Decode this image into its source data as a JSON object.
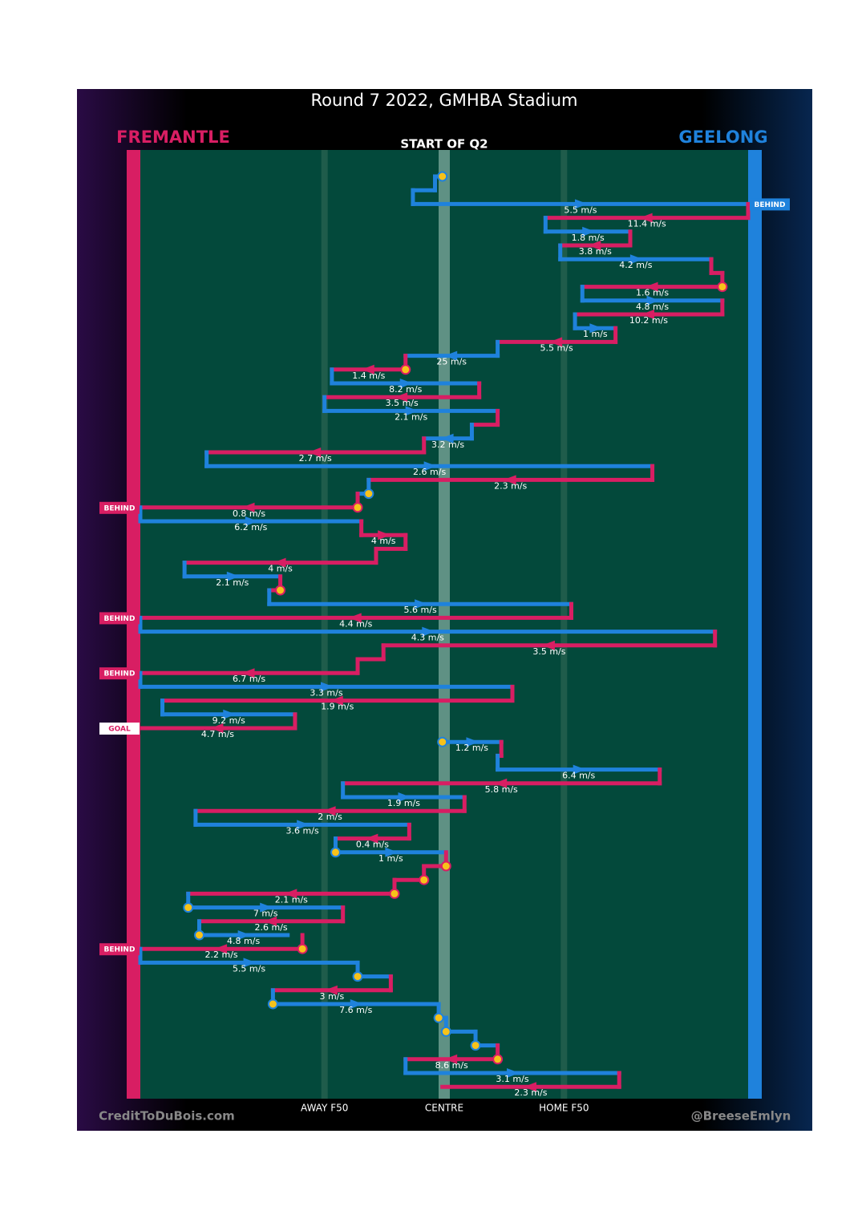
{
  "chart_data": {
    "type": "possession-chain",
    "title": "Round 7 2022, GMHBA Stadium",
    "subtitle": "START OF Q2",
    "credit_left": "CreditToDuBois.com",
    "credit_right": "@BreeseEmlyn",
    "teams": [
      {
        "name": "FREMANTLE",
        "color": "#d81e63"
      },
      {
        "name": "GEELONG",
        "color": "#1f82dc"
      }
    ],
    "xlim": [
      0,
      165
    ],
    "xticks": [
      {
        "value": 50,
        "label": "AWAY F50"
      },
      {
        "value": 82.5,
        "label": "CENTRE"
      },
      {
        "value": 115,
        "label": "HOME F50"
      }
    ],
    "moves": [
      {
        "team": 1,
        "from": 82,
        "to": 80,
        "contest": true
      },
      {
        "team": 1,
        "from": 80,
        "to": 74
      },
      {
        "team": 1,
        "from": 74,
        "to": 165,
        "label": "5.5 m/s",
        "result": "BEHIND"
      },
      {
        "team": 0,
        "from": 165,
        "to": 110,
        "label": "11.4 m/s"
      },
      {
        "team": 1,
        "from": 110,
        "to": 133,
        "label": "1.8 m/s"
      },
      {
        "team": 0,
        "from": 133,
        "to": 114,
        "label": "3.8 m/s"
      },
      {
        "team": 1,
        "from": 114,
        "to": 155,
        "label": "4.2 m/s"
      },
      {
        "team": 0,
        "from": 155,
        "to": 158
      },
      {
        "team": 0,
        "from": 158,
        "to": 120,
        "label": "1.6 m/s",
        "contest": true
      },
      {
        "team": 1,
        "from": 120,
        "to": 158,
        "label": "4.8 m/s"
      },
      {
        "team": 0,
        "from": 158,
        "to": 118,
        "label": "10.2 m/s"
      },
      {
        "team": 1,
        "from": 118,
        "to": 129,
        "label": "1 m/s"
      },
      {
        "team": 0,
        "from": 129,
        "to": 97,
        "label": "5.5 m/s"
      },
      {
        "team": 1,
        "from": 97,
        "to": 72,
        "label": "25 m/s"
      },
      {
        "team": 0,
        "from": 72,
        "to": 52,
        "label": "1.4 m/s",
        "contest": true
      },
      {
        "team": 1,
        "from": 52,
        "to": 92,
        "label": "8.2 m/s"
      },
      {
        "team": 0,
        "from": 92,
        "to": 50,
        "label": "3.5 m/s"
      },
      {
        "team": 1,
        "from": 50,
        "to": 97,
        "label": "2.1 m/s"
      },
      {
        "team": 0,
        "from": 97,
        "to": 90
      },
      {
        "team": 1,
        "from": 90,
        "to": 77,
        "label": "3.2 m/s"
      },
      {
        "team": 0,
        "from": 77,
        "to": 18,
        "label": "2.7 m/s"
      },
      {
        "team": 1,
        "from": 18,
        "to": 139,
        "label": "2.6 m/s"
      },
      {
        "team": 0,
        "from": 139,
        "to": 62,
        "label": "2.3 m/s"
      },
      {
        "team": 1,
        "from": 62,
        "to": 59,
        "contest": true
      },
      {
        "team": 0,
        "from": 59,
        "to": 0,
        "label": "0.8 m/s",
        "contest": true,
        "result": "BEHIND"
      },
      {
        "team": 1,
        "from": 0,
        "to": 60,
        "label": "6.2 m/s"
      },
      {
        "team": 0,
        "from": 60,
        "to": 72,
        "label": "4 m/s"
      },
      {
        "team": 0,
        "from": 72,
        "to": 64
      },
      {
        "team": 0,
        "from": 64,
        "to": 12,
        "label": "4 m/s"
      },
      {
        "team": 1,
        "from": 12,
        "to": 38,
        "label": "2.1 m/s"
      },
      {
        "team": 0,
        "from": 38,
        "to": 35,
        "contest": true
      },
      {
        "team": 1,
        "from": 35,
        "to": 117,
        "label": "5.6 m/s"
      },
      {
        "team": 0,
        "from": 117,
        "to": 0,
        "label": "4.4 m/s",
        "result": "BEHIND"
      },
      {
        "team": 1,
        "from": 0,
        "to": 156,
        "label": "4.3 m/s"
      },
      {
        "team": 0,
        "from": 156,
        "to": 66,
        "label": "3.5 m/s"
      },
      {
        "team": 0,
        "from": 66,
        "to": 59
      },
      {
        "team": 0,
        "from": 59,
        "to": 0,
        "label": "6.7 m/s",
        "result": "BEHIND"
      },
      {
        "team": 1,
        "from": 0,
        "to": 101,
        "label": "3.3 m/s"
      },
      {
        "team": 0,
        "from": 101,
        "to": 6,
        "label": "1.9 m/s"
      },
      {
        "team": 1,
        "from": 6,
        "to": 42,
        "label": "9.2 m/s"
      },
      {
        "team": 0,
        "from": 42,
        "to": 0,
        "label": "4.7 m/s",
        "result": "GOAL"
      },
      {
        "team": 1,
        "from": 82,
        "to": 98,
        "label": "1.2 m/s",
        "contest": true
      },
      {
        "team": 0,
        "from": 98,
        "to": 97
      },
      {
        "team": 1,
        "from": 97,
        "to": 141,
        "label": "6.4 m/s"
      },
      {
        "team": 0,
        "from": 141,
        "to": 55,
        "label": "5.8 m/s"
      },
      {
        "team": 1,
        "from": 55,
        "to": 88,
        "label": "1.9 m/s"
      },
      {
        "team": 0,
        "from": 88,
        "to": 15,
        "label": "2 m/s"
      },
      {
        "team": 1,
        "from": 15,
        "to": 73,
        "label": "3.6 m/s"
      },
      {
        "team": 0,
        "from": 73,
        "to": 53,
        "label": "0.4 m/s"
      },
      {
        "team": 1,
        "from": 53,
        "to": 83,
        "label": "1 m/s",
        "contest": true
      },
      {
        "team": 0,
        "from": 83,
        "to": 77,
        "contest": true
      },
      {
        "team": 0,
        "from": 77,
        "to": 69,
        "contest": true
      },
      {
        "team": 0,
        "from": 69,
        "to": 13,
        "label": "2.1 m/s",
        "contest": true
      },
      {
        "team": 1,
        "from": 13,
        "to": 55,
        "label": "7 m/s",
        "contest": true
      },
      {
        "team": 0,
        "from": 55,
        "to": 16,
        "label": "2.6 m/s"
      },
      {
        "team": 1,
        "from": 16,
        "to": 40,
        "label": "4.8 m/s",
        "contest": true
      },
      {
        "team": 0,
        "from": 44,
        "to": 0,
        "label": "2.2 m/s",
        "contest": true,
        "result": "BEHIND"
      },
      {
        "team": 1,
        "from": 0,
        "to": 59,
        "label": "5.5 m/s"
      },
      {
        "team": 1,
        "from": 59,
        "to": 68,
        "contest": true
      },
      {
        "team": 0,
        "from": 68,
        "to": 36,
        "label": "3 m/s"
      },
      {
        "team": 1,
        "from": 36,
        "to": 81,
        "label": "7.6 m/s",
        "contest": true
      },
      {
        "team": 1,
        "from": 81,
        "to": 83,
        "contest": true
      },
      {
        "team": 1,
        "from": 83,
        "to": 91,
        "contest": true
      },
      {
        "team": 1,
        "from": 91,
        "to": 97,
        "contest": true
      },
      {
        "team": 0,
        "from": 97,
        "to": 72,
        "label": "8.6 m/s",
        "contest": true
      },
      {
        "team": 1,
        "from": 72,
        "to": 130,
        "label": "3.1 m/s"
      },
      {
        "team": 0,
        "from": 130,
        "to": 82,
        "label": "2.3 m/s"
      }
    ]
  }
}
